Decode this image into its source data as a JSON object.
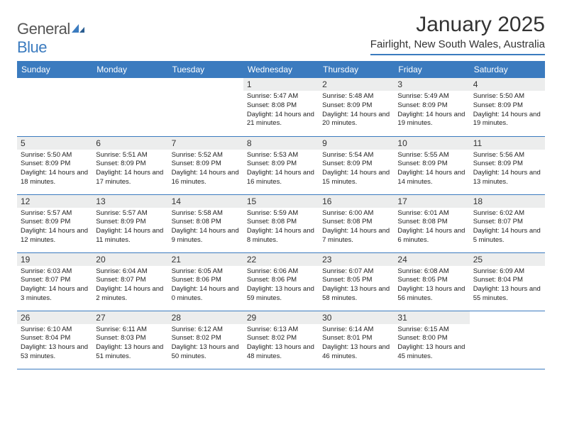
{
  "brand": {
    "part1": "General",
    "part2": "Blue"
  },
  "title": "January 2025",
  "location": "Fairlight, New South Wales, Australia",
  "colors": {
    "header_bg": "#3b7bbf",
    "daynum_bg": "#eceded",
    "rule": "#3b7bbf"
  },
  "weekdays": [
    "Sunday",
    "Monday",
    "Tuesday",
    "Wednesday",
    "Thursday",
    "Friday",
    "Saturday"
  ],
  "grid": [
    [
      null,
      null,
      null,
      {
        "n": "1",
        "sr": "5:47 AM",
        "ss": "8:08 PM",
        "dl": "14 hours and 21 minutes."
      },
      {
        "n": "2",
        "sr": "5:48 AM",
        "ss": "8:09 PM",
        "dl": "14 hours and 20 minutes."
      },
      {
        "n": "3",
        "sr": "5:49 AM",
        "ss": "8:09 PM",
        "dl": "14 hours and 19 minutes."
      },
      {
        "n": "4",
        "sr": "5:50 AM",
        "ss": "8:09 PM",
        "dl": "14 hours and 19 minutes."
      }
    ],
    [
      {
        "n": "5",
        "sr": "5:50 AM",
        "ss": "8:09 PM",
        "dl": "14 hours and 18 minutes."
      },
      {
        "n": "6",
        "sr": "5:51 AM",
        "ss": "8:09 PM",
        "dl": "14 hours and 17 minutes."
      },
      {
        "n": "7",
        "sr": "5:52 AM",
        "ss": "8:09 PM",
        "dl": "14 hours and 16 minutes."
      },
      {
        "n": "8",
        "sr": "5:53 AM",
        "ss": "8:09 PM",
        "dl": "14 hours and 16 minutes."
      },
      {
        "n": "9",
        "sr": "5:54 AM",
        "ss": "8:09 PM",
        "dl": "14 hours and 15 minutes."
      },
      {
        "n": "10",
        "sr": "5:55 AM",
        "ss": "8:09 PM",
        "dl": "14 hours and 14 minutes."
      },
      {
        "n": "11",
        "sr": "5:56 AM",
        "ss": "8:09 PM",
        "dl": "14 hours and 13 minutes."
      }
    ],
    [
      {
        "n": "12",
        "sr": "5:57 AM",
        "ss": "8:09 PM",
        "dl": "14 hours and 12 minutes."
      },
      {
        "n": "13",
        "sr": "5:57 AM",
        "ss": "8:09 PM",
        "dl": "14 hours and 11 minutes."
      },
      {
        "n": "14",
        "sr": "5:58 AM",
        "ss": "8:08 PM",
        "dl": "14 hours and 9 minutes."
      },
      {
        "n": "15",
        "sr": "5:59 AM",
        "ss": "8:08 PM",
        "dl": "14 hours and 8 minutes."
      },
      {
        "n": "16",
        "sr": "6:00 AM",
        "ss": "8:08 PM",
        "dl": "14 hours and 7 minutes."
      },
      {
        "n": "17",
        "sr": "6:01 AM",
        "ss": "8:08 PM",
        "dl": "14 hours and 6 minutes."
      },
      {
        "n": "18",
        "sr": "6:02 AM",
        "ss": "8:07 PM",
        "dl": "14 hours and 5 minutes."
      }
    ],
    [
      {
        "n": "19",
        "sr": "6:03 AM",
        "ss": "8:07 PM",
        "dl": "14 hours and 3 minutes."
      },
      {
        "n": "20",
        "sr": "6:04 AM",
        "ss": "8:07 PM",
        "dl": "14 hours and 2 minutes."
      },
      {
        "n": "21",
        "sr": "6:05 AM",
        "ss": "8:06 PM",
        "dl": "14 hours and 0 minutes."
      },
      {
        "n": "22",
        "sr": "6:06 AM",
        "ss": "8:06 PM",
        "dl": "13 hours and 59 minutes."
      },
      {
        "n": "23",
        "sr": "6:07 AM",
        "ss": "8:05 PM",
        "dl": "13 hours and 58 minutes."
      },
      {
        "n": "24",
        "sr": "6:08 AM",
        "ss": "8:05 PM",
        "dl": "13 hours and 56 minutes."
      },
      {
        "n": "25",
        "sr": "6:09 AM",
        "ss": "8:04 PM",
        "dl": "13 hours and 55 minutes."
      }
    ],
    [
      {
        "n": "26",
        "sr": "6:10 AM",
        "ss": "8:04 PM",
        "dl": "13 hours and 53 minutes."
      },
      {
        "n": "27",
        "sr": "6:11 AM",
        "ss": "8:03 PM",
        "dl": "13 hours and 51 minutes."
      },
      {
        "n": "28",
        "sr": "6:12 AM",
        "ss": "8:02 PM",
        "dl": "13 hours and 50 minutes."
      },
      {
        "n": "29",
        "sr": "6:13 AM",
        "ss": "8:02 PM",
        "dl": "13 hours and 48 minutes."
      },
      {
        "n": "30",
        "sr": "6:14 AM",
        "ss": "8:01 PM",
        "dl": "13 hours and 46 minutes."
      },
      {
        "n": "31",
        "sr": "6:15 AM",
        "ss": "8:00 PM",
        "dl": "13 hours and 45 minutes."
      },
      null
    ]
  ],
  "labels": {
    "sunrise": "Sunrise: ",
    "sunset": "Sunset: ",
    "daylight": "Daylight: "
  }
}
